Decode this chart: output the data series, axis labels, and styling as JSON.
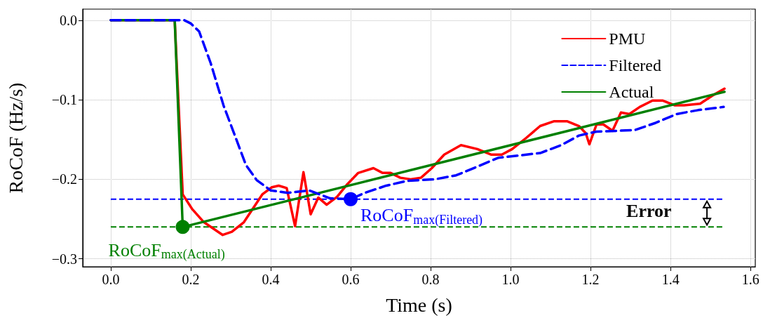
{
  "chart_data": {
    "type": "line",
    "xlabel": "Time (s)",
    "ylabel": "RoCoF (Hz/s)",
    "xlim": [
      -0.07,
      1.612
    ],
    "ylim": [
      -0.31,
      0.014
    ],
    "xticks": [
      {
        "value": 0,
        "label": "0.0"
      },
      {
        "value": 0.2,
        "label": "0.2"
      },
      {
        "value": 0.4,
        "label": "0.4"
      },
      {
        "value": 0.6,
        "label": "0.6"
      },
      {
        "value": 0.8,
        "label": "0.8"
      },
      {
        "value": 1,
        "label": "1.0"
      },
      {
        "value": 1.2,
        "label": "1.2"
      },
      {
        "value": 1.4,
        "label": "1.4"
      },
      {
        "value": 1.6,
        "label": "1.6"
      }
    ],
    "yticks": [
      {
        "value": 0,
        "label": "0.0"
      },
      {
        "value": -0.1,
        "label": "−0.1"
      },
      {
        "value": -0.2,
        "label": "−0.2"
      },
      {
        "value": -0.3,
        "label": "−0.3"
      }
    ],
    "grid": true,
    "legend": "top right",
    "marker": "none",
    "series": [
      {
        "name": "PMU",
        "color": "#ff0000",
        "line_style": "solid",
        "x": [
          0,
          0.16,
          0.18,
          0.203,
          0.233,
          0.28,
          0.303,
          0.333,
          0.379,
          0.403,
          0.42,
          0.44,
          0.461,
          0.482,
          0.5,
          0.519,
          0.54,
          0.566,
          0.592,
          0.619,
          0.657,
          0.68,
          0.7,
          0.724,
          0.75,
          0.776,
          0.803,
          0.834,
          0.876,
          0.917,
          0.952,
          0.978,
          1.004,
          1.039,
          1.074,
          1.109,
          1.141,
          1.171,
          1.188,
          1.197,
          1.215,
          1.232,
          1.255,
          1.276,
          1.297,
          1.323,
          1.355,
          1.381,
          1.411,
          1.434,
          1.474,
          1.504,
          1.535
        ],
        "values": [
          0,
          0,
          -0.219,
          -0.237,
          -0.254,
          -0.27,
          -0.266,
          -0.254,
          -0.219,
          -0.21,
          -0.208,
          -0.211,
          -0.259,
          -0.191,
          -0.244,
          -0.223,
          -0.232,
          -0.222,
          -0.206,
          -0.192,
          -0.186,
          -0.192,
          -0.192,
          -0.198,
          -0.2,
          -0.198,
          -0.186,
          -0.169,
          -0.157,
          -0.162,
          -0.169,
          -0.169,
          -0.162,
          -0.148,
          -0.133,
          -0.127,
          -0.127,
          -0.133,
          -0.142,
          -0.156,
          -0.131,
          -0.131,
          -0.139,
          -0.116,
          -0.118,
          -0.109,
          -0.101,
          -0.101,
          -0.107,
          -0.107,
          -0.105,
          -0.095,
          -0.086
        ]
      },
      {
        "name": "Filtered",
        "color": "#0000ff",
        "line_style": "dashed",
        "x": [
          0,
          0.184,
          0.2,
          0.221,
          0.25,
          0.282,
          0.312,
          0.338,
          0.365,
          0.4,
          0.443,
          0.496,
          0.549,
          0.6,
          0.636,
          0.689,
          0.741,
          0.811,
          0.864,
          0.917,
          0.969,
          1.022,
          1.074,
          1.127,
          1.171,
          1.215,
          1.267,
          1.311,
          1.363,
          1.415,
          1.469,
          1.533
        ],
        "values": [
          0,
          0,
          -0.004,
          -0.014,
          -0.054,
          -0.107,
          -0.147,
          -0.182,
          -0.201,
          -0.214,
          -0.217,
          -0.214,
          -0.224,
          -0.225,
          -0.217,
          -0.208,
          -0.202,
          -0.2,
          -0.195,
          -0.184,
          -0.173,
          -0.17,
          -0.167,
          -0.157,
          -0.145,
          -0.14,
          -0.139,
          -0.138,
          -0.129,
          -0.118,
          -0.113,
          -0.109
        ]
      },
      {
        "name": "Actual",
        "color": "#008000",
        "line_style": "solid",
        "x": [
          0,
          0.16,
          0.18,
          1.535
        ],
        "values": [
          0,
          0,
          -0.26,
          -0.09
        ]
      },
      {
        "type": "scatter",
        "marker": "circle",
        "color": "#008000",
        "x": [
          0.18
        ],
        "values": [
          -0.26
        ]
      },
      {
        "type": "scatter",
        "marker": "circle",
        "color": "#0000ff",
        "x": [
          0.6
        ],
        "values": [
          -0.225
        ]
      }
    ],
    "ref_lines": [
      {
        "axis": "y",
        "value": -0.225,
        "color": "#0000ff",
        "line_style": "dashed"
      },
      {
        "axis": "y",
        "value": -0.26,
        "color": "#008000",
        "line_style": "dashed"
      }
    ],
    "annotations": [
      {
        "text": "RoCoF$_{max(Actual)}$",
        "x": 0.18,
        "y": -0.26
      },
      {
        "text": "RoCoF$_{max(Filtered)}$",
        "x": 0.6,
        "y": -0.225
      },
      "Error"
    ]
  }
}
